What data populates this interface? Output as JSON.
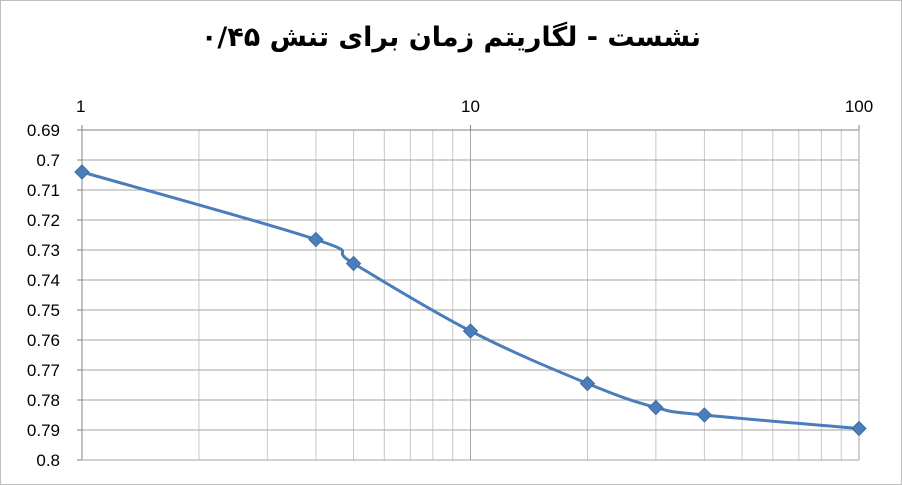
{
  "chart_data": {
    "type": "line",
    "title": "نشست - لگاریتم زمان برای تنش ۰/۴۵",
    "xlabel": "",
    "ylabel": "",
    "x_scale": "log",
    "x_axis_position": "top",
    "y_reversed": true,
    "xlim": [
      1,
      100
    ],
    "ylim": [
      0.69,
      0.8
    ],
    "x_tick_labels": [
      "1",
      "10",
      "100"
    ],
    "y_tick_labels": [
      "0.69",
      "0.7",
      "0.71",
      "0.72",
      "0.73",
      "0.74",
      "0.75",
      "0.76",
      "0.77",
      "0.78",
      "0.79",
      "0.8"
    ],
    "grid": true,
    "series": [
      {
        "color": "#4a7ebb",
        "marker": "diamond",
        "smooth": true,
        "x": [
          1,
          4,
          5,
          10,
          20,
          30,
          40,
          100
        ],
        "y": [
          0.704,
          0.7265,
          0.7345,
          0.757,
          0.7745,
          0.7825,
          0.785,
          0.7895
        ]
      }
    ]
  }
}
